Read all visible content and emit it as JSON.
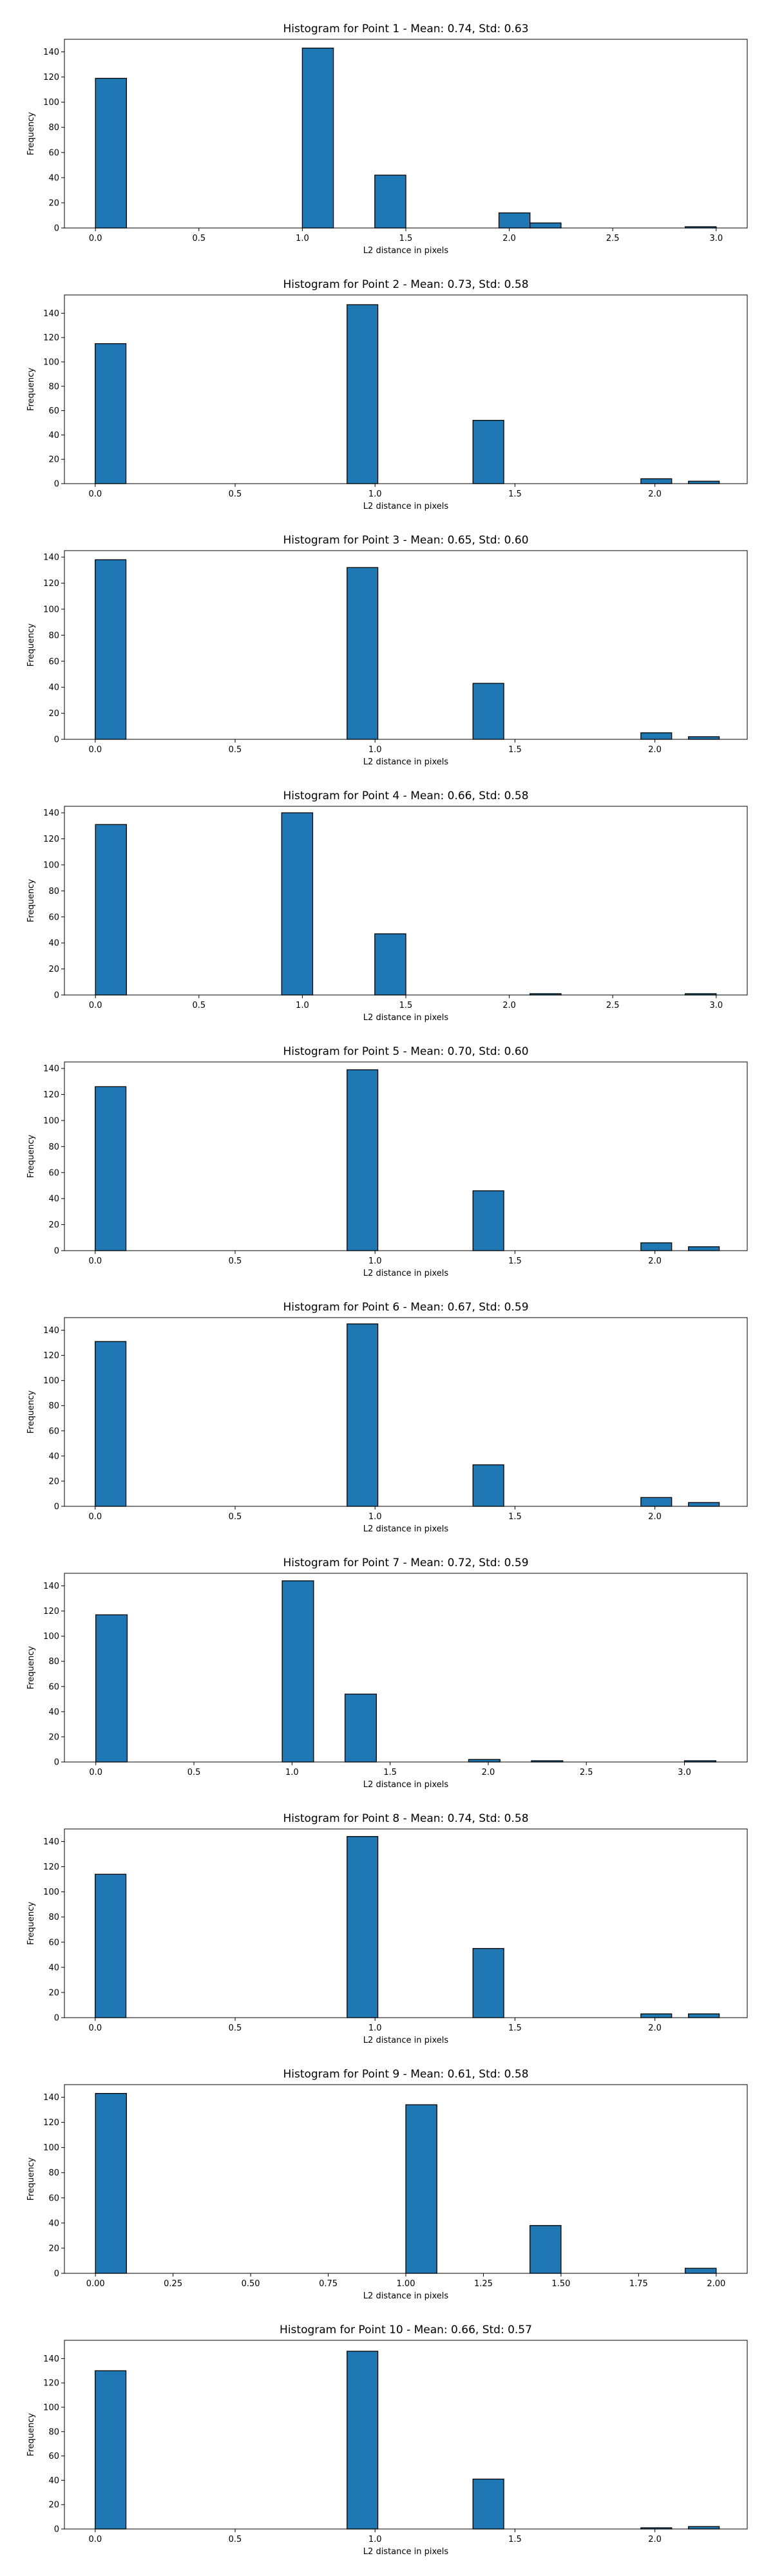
{
  "figure": {
    "background": "#ffffff",
    "bar_color": "#1f77b4",
    "edge_color": "#000000"
  },
  "chart_data": [
    {
      "type": "bar",
      "title": "Histogram for Point 1 - Mean: 0.74, Std: 0.63",
      "xlabel": "L2 distance in pixels",
      "ylabel": "Frequency",
      "xlim": [
        -0.15,
        3.15
      ],
      "ylim": [
        0,
        150
      ],
      "xticks": [
        0,
        0.5,
        1.0,
        1.5,
        2.0,
        2.5,
        3.0
      ],
      "xtick_labels": [
        "0.0",
        "0.5",
        "1.0",
        "1.5",
        "2.0",
        "2.5",
        "3.0"
      ],
      "yticks": [
        0,
        20,
        40,
        60,
        80,
        100,
        120,
        140
      ],
      "ytick_labels": [
        "0",
        "20",
        "40",
        "60",
        "80",
        "100",
        "120",
        "140"
      ],
      "grid": false,
      "legend": "none",
      "bins": [
        [
          0,
          0.15
        ],
        [
          1.0,
          1.15
        ],
        [
          1.35,
          1.5
        ],
        [
          1.95,
          2.1
        ],
        [
          2.1,
          2.25
        ],
        [
          2.85,
          3.0
        ]
      ],
      "values": [
        119,
        143,
        42,
        12,
        4,
        1
      ]
    },
    {
      "type": "bar",
      "title": "Histogram for Point 2 - Mean: 0.73, Std: 0.58",
      "xlabel": "L2 distance in pixels",
      "ylabel": "Frequency",
      "xlim": [
        -0.11,
        2.33
      ],
      "ylim": [
        0,
        155
      ],
      "xticks": [
        0,
        0.5,
        1.0,
        1.5,
        2.0
      ],
      "xtick_labels": [
        "0.0",
        "0.5",
        "1.0",
        "1.5",
        "2.0"
      ],
      "yticks": [
        0,
        20,
        40,
        60,
        80,
        100,
        120,
        140
      ],
      "ytick_labels": [
        "0",
        "20",
        "40",
        "60",
        "80",
        "100",
        "120",
        "140"
      ],
      "grid": false,
      "legend": "none",
      "bins": [
        [
          0,
          0.11
        ],
        [
          0.9,
          1.01
        ],
        [
          1.35,
          1.46
        ],
        [
          1.95,
          2.06
        ],
        [
          2.12,
          2.23
        ]
      ],
      "values": [
        115,
        147,
        52,
        4,
        2
      ]
    },
    {
      "type": "bar",
      "title": "Histogram for Point 3 - Mean: 0.65, Std: 0.60",
      "xlabel": "L2 distance in pixels",
      "ylabel": "Frequency",
      "xlim": [
        -0.11,
        2.33
      ],
      "ylim": [
        0,
        145
      ],
      "xticks": [
        0,
        0.5,
        1.0,
        1.5,
        2.0
      ],
      "xtick_labels": [
        "0.0",
        "0.5",
        "1.0",
        "1.5",
        "2.0"
      ],
      "yticks": [
        0,
        20,
        40,
        60,
        80,
        100,
        120,
        140
      ],
      "ytick_labels": [
        "0",
        "20",
        "40",
        "60",
        "80",
        "100",
        "120",
        "140"
      ],
      "grid": false,
      "legend": "none",
      "bins": [
        [
          0,
          0.11
        ],
        [
          0.9,
          1.01
        ],
        [
          1.35,
          1.46
        ],
        [
          1.95,
          2.06
        ],
        [
          2.12,
          2.23
        ]
      ],
      "values": [
        138,
        132,
        43,
        5,
        2
      ]
    },
    {
      "type": "bar",
      "title": "Histogram for Point 4 - Mean: 0.66, Std: 0.58",
      "xlabel": "L2 distance in pixels",
      "ylabel": "Frequency",
      "xlim": [
        -0.15,
        3.15
      ],
      "ylim": [
        0,
        145
      ],
      "xticks": [
        0,
        0.5,
        1.0,
        1.5,
        2.0,
        2.5,
        3.0
      ],
      "xtick_labels": [
        "0.0",
        "0.5",
        "1.0",
        "1.5",
        "2.0",
        "2.5",
        "3.0"
      ],
      "yticks": [
        0,
        20,
        40,
        60,
        80,
        100,
        120,
        140
      ],
      "ytick_labels": [
        "0",
        "20",
        "40",
        "60",
        "80",
        "100",
        "120",
        "140"
      ],
      "grid": false,
      "legend": "none",
      "bins": [
        [
          0,
          0.15
        ],
        [
          0.9,
          1.05
        ],
        [
          1.35,
          1.5
        ],
        [
          2.1,
          2.25
        ],
        [
          2.85,
          3.0
        ]
      ],
      "values": [
        131,
        140,
        47,
        1,
        1
      ]
    },
    {
      "type": "bar",
      "title": "Histogram for Point 5 - Mean: 0.70, Std: 0.60",
      "xlabel": "L2 distance in pixels",
      "ylabel": "Frequency",
      "xlim": [
        -0.11,
        2.33
      ],
      "ylim": [
        0,
        145
      ],
      "xticks": [
        0,
        0.5,
        1.0,
        1.5,
        2.0
      ],
      "xtick_labels": [
        "0.0",
        "0.5",
        "1.0",
        "1.5",
        "2.0"
      ],
      "yticks": [
        0,
        20,
        40,
        60,
        80,
        100,
        120,
        140
      ],
      "ytick_labels": [
        "0",
        "20",
        "40",
        "60",
        "80",
        "100",
        "120",
        "140"
      ],
      "grid": false,
      "legend": "none",
      "bins": [
        [
          0,
          0.11
        ],
        [
          0.9,
          1.01
        ],
        [
          1.35,
          1.46
        ],
        [
          1.95,
          2.06
        ],
        [
          2.12,
          2.23
        ]
      ],
      "values": [
        126,
        139,
        46,
        6,
        3
      ]
    },
    {
      "type": "bar",
      "title": "Histogram for Point 6 - Mean: 0.67, Std: 0.59",
      "xlabel": "L2 distance in pixels",
      "ylabel": "Frequency",
      "xlim": [
        -0.11,
        2.33
      ],
      "ylim": [
        0,
        150
      ],
      "xticks": [
        0,
        0.5,
        1.0,
        1.5,
        2.0
      ],
      "xtick_labels": [
        "0.0",
        "0.5",
        "1.0",
        "1.5",
        "2.0"
      ],
      "yticks": [
        0,
        20,
        40,
        60,
        80,
        100,
        120,
        140
      ],
      "ytick_labels": [
        "0",
        "20",
        "40",
        "60",
        "80",
        "100",
        "120",
        "140"
      ],
      "grid": false,
      "legend": "none",
      "bins": [
        [
          0,
          0.11
        ],
        [
          0.9,
          1.01
        ],
        [
          1.35,
          1.46
        ],
        [
          1.95,
          2.06
        ],
        [
          2.12,
          2.23
        ]
      ],
      "values": [
        131,
        145,
        33,
        7,
        3
      ]
    },
    {
      "type": "bar",
      "title": "Histogram for Point 7 - Mean: 0.72, Std: 0.59",
      "xlabel": "L2 distance in pixels",
      "ylabel": "Frequency",
      "xlim": [
        -0.16,
        3.32
      ],
      "ylim": [
        0,
        150
      ],
      "xticks": [
        0,
        0.5,
        1.0,
        1.5,
        2.0,
        2.5,
        3.0
      ],
      "xtick_labels": [
        "0.0",
        "0.5",
        "1.0",
        "1.5",
        "2.0",
        "2.5",
        "3.0"
      ],
      "yticks": [
        0,
        20,
        40,
        60,
        80,
        100,
        120,
        140
      ],
      "ytick_labels": [
        "0",
        "20",
        "40",
        "60",
        "80",
        "100",
        "120",
        "140"
      ],
      "grid": false,
      "legend": "none",
      "bins": [
        [
          0,
          0.16
        ],
        [
          0.95,
          1.11
        ],
        [
          1.27,
          1.43
        ],
        [
          1.9,
          2.06
        ],
        [
          2.22,
          2.38
        ],
        [
          2.85,
          3.01
        ],
        [
          3.0,
          3.16
        ]
      ],
      "values": [
        117,
        144,
        54,
        2,
        1,
        0,
        1
      ]
    },
    {
      "type": "bar",
      "title": "Histogram for Point 8 - Mean: 0.74, Std: 0.58",
      "xlabel": "L2 distance in pixels",
      "ylabel": "Frequency",
      "xlim": [
        -0.11,
        2.33
      ],
      "ylim": [
        0,
        150
      ],
      "xticks": [
        0,
        0.5,
        1.0,
        1.5,
        2.0
      ],
      "xtick_labels": [
        "0.0",
        "0.5",
        "1.0",
        "1.5",
        "2.0"
      ],
      "yticks": [
        0,
        20,
        40,
        60,
        80,
        100,
        120,
        140
      ],
      "ytick_labels": [
        "0",
        "20",
        "40",
        "60",
        "80",
        "100",
        "120",
        "140"
      ],
      "grid": false,
      "legend": "none",
      "bins": [
        [
          0,
          0.11
        ],
        [
          0.9,
          1.01
        ],
        [
          1.35,
          1.46
        ],
        [
          1.95,
          2.06
        ],
        [
          2.12,
          2.23
        ]
      ],
      "values": [
        114,
        144,
        55,
        3,
        3
      ]
    },
    {
      "type": "bar",
      "title": "Histogram for Point 9 - Mean: 0.61, Std: 0.58",
      "xlabel": "L2 distance in pixels",
      "ylabel": "Frequency",
      "xlim": [
        -0.1,
        2.1
      ],
      "ylim": [
        0,
        150
      ],
      "xticks": [
        0,
        0.25,
        0.5,
        0.75,
        1.0,
        1.25,
        1.5,
        1.75,
        2.0
      ],
      "xtick_labels": [
        "0.00",
        "0.25",
        "0.50",
        "0.75",
        "1.00",
        "1.25",
        "1.50",
        "1.75",
        "2.00"
      ],
      "yticks": [
        0,
        20,
        40,
        60,
        80,
        100,
        120,
        140
      ],
      "ytick_labels": [
        "0",
        "20",
        "40",
        "60",
        "80",
        "100",
        "120",
        "140"
      ],
      "grid": false,
      "legend": "none",
      "bins": [
        [
          0,
          0.1
        ],
        [
          1.0,
          1.1
        ],
        [
          1.4,
          1.5
        ],
        [
          1.9,
          2.0
        ]
      ],
      "values": [
        143,
        134,
        38,
        4
      ]
    },
    {
      "type": "bar",
      "title": "Histogram for Point 10 - Mean: 0.66, Std: 0.57",
      "xlabel": "L2 distance in pixels",
      "ylabel": "Frequency",
      "xlim": [
        -0.11,
        2.33
      ],
      "ylim": [
        0,
        155
      ],
      "xticks": [
        0,
        0.5,
        1.0,
        1.5,
        2.0
      ],
      "xtick_labels": [
        "0.0",
        "0.5",
        "1.0",
        "1.5",
        "2.0"
      ],
      "yticks": [
        0,
        20,
        40,
        60,
        80,
        100,
        120,
        140
      ],
      "ytick_labels": [
        "0",
        "20",
        "40",
        "60",
        "80",
        "100",
        "120",
        "140"
      ],
      "grid": false,
      "legend": "none",
      "bins": [
        [
          0,
          0.11
        ],
        [
          0.9,
          1.01
        ],
        [
          1.35,
          1.46
        ],
        [
          1.95,
          2.06
        ],
        [
          2.12,
          2.23
        ]
      ],
      "values": [
        130,
        146,
        41,
        1,
        2
      ]
    }
  ]
}
